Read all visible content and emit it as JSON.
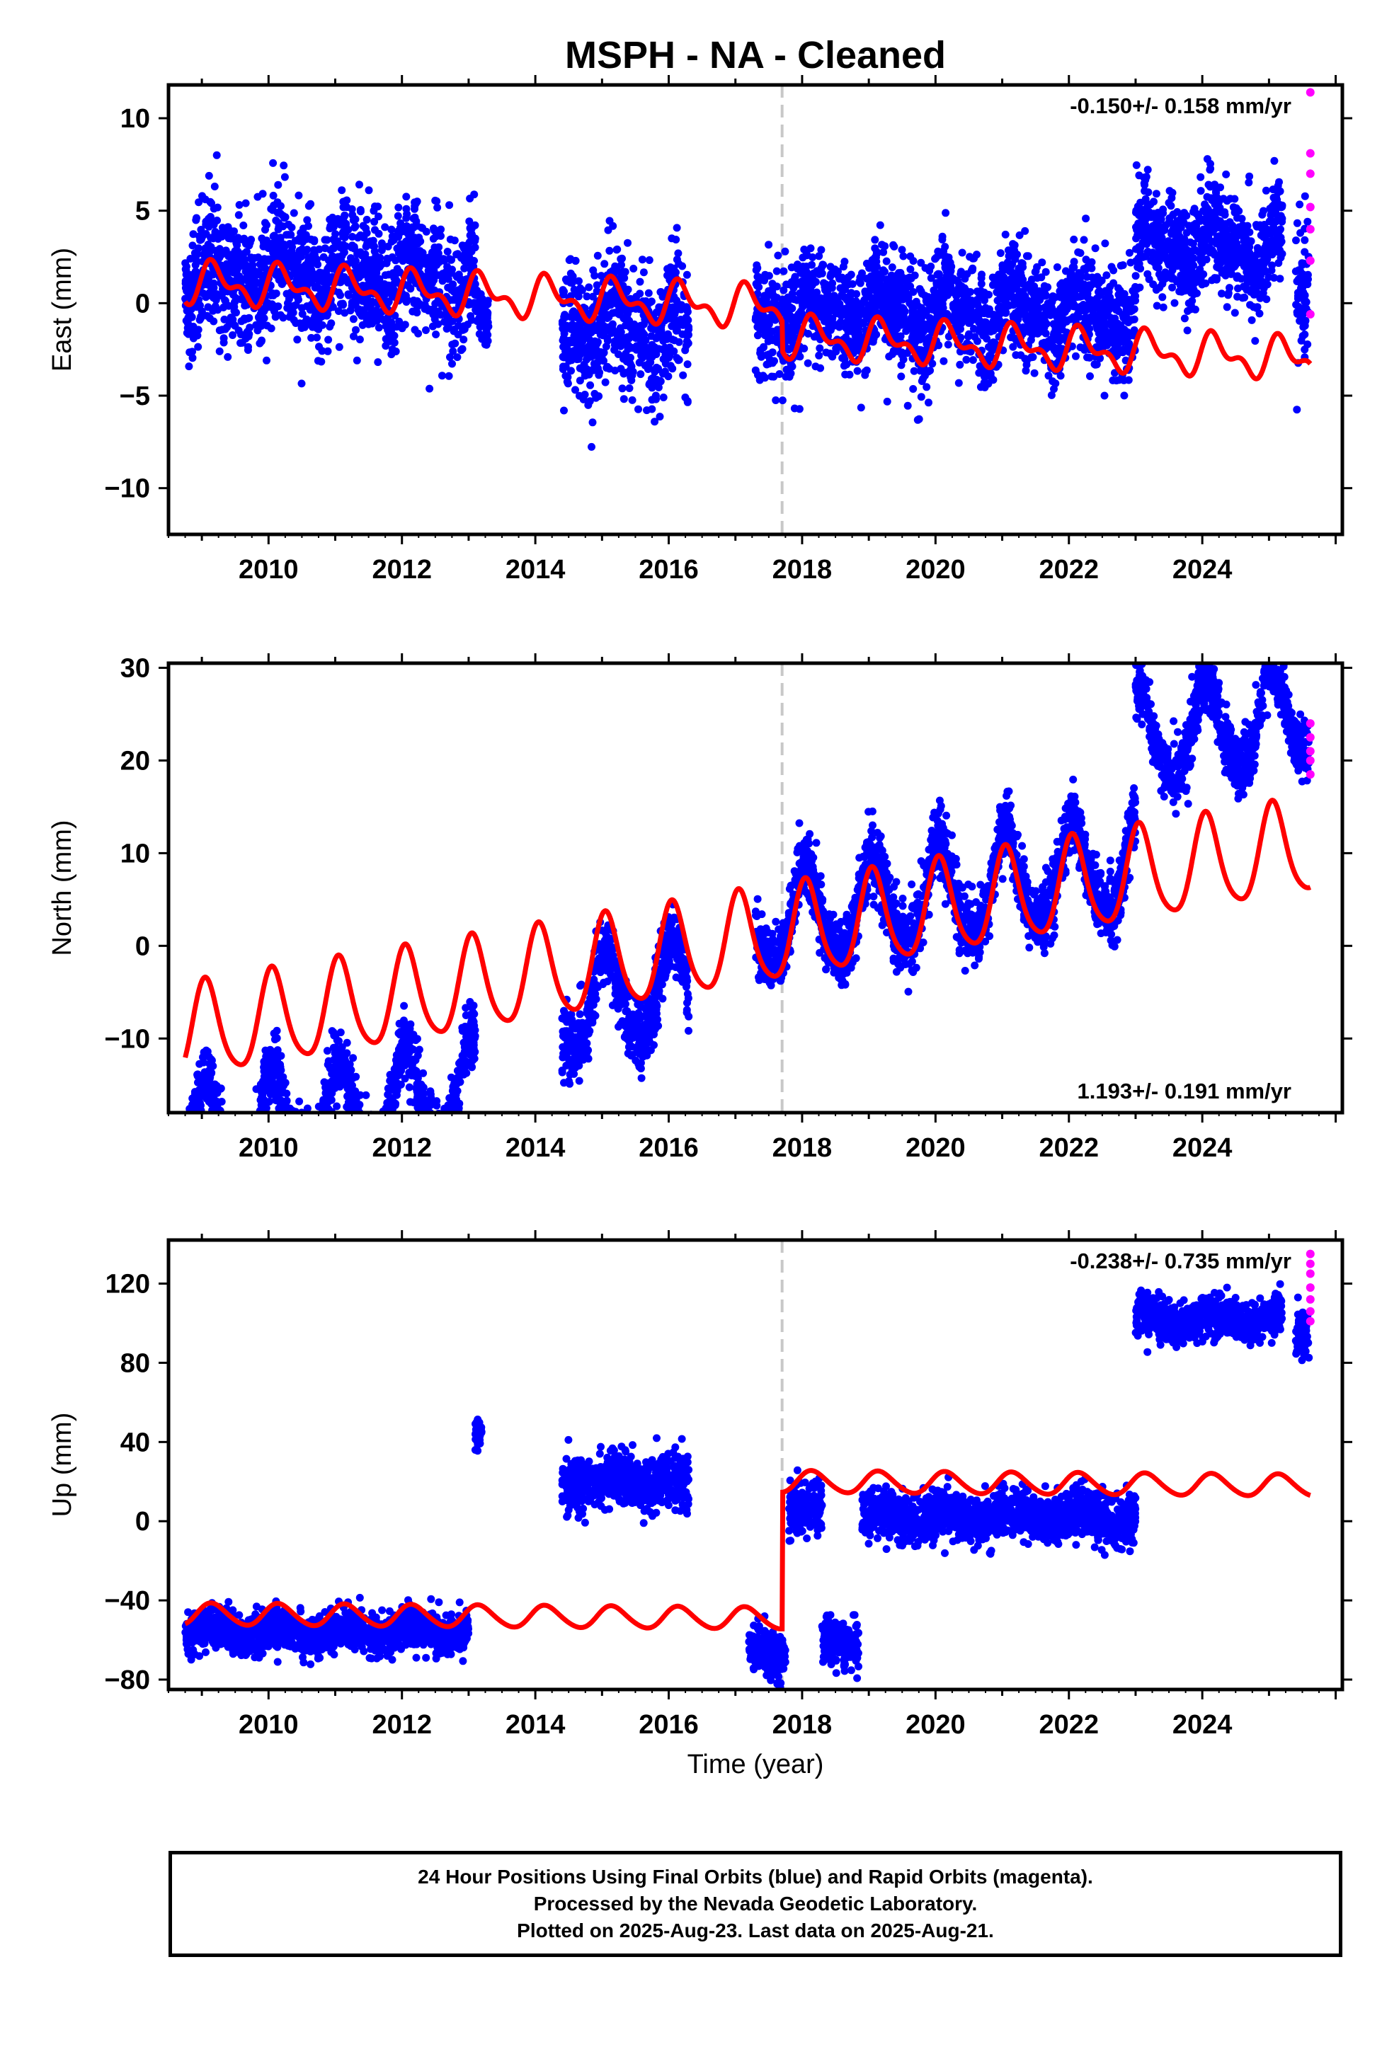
{
  "title": "MSPH  - NA - Cleaned",
  "colors": {
    "final": "#0000ff",
    "rapid": "#ff00ff",
    "model": "#ff0000",
    "event_line": "#c8c8c8"
  },
  "event_year": 2017.7,
  "xlabel": "Time (year)",
  "footer": {
    "line1": "24 Hour Positions Using Final Orbits (blue) and Rapid Orbits (magenta).",
    "line2": "Processed by the Nevada Geodetic Laboratory.",
    "line3": "Plotted on 2025-Aug-23. Last data on 2025-Aug-21."
  },
  "chart_data": [
    {
      "type": "scatter",
      "component": "East",
      "ylabel": "East (mm)",
      "rate_label": "-0.150+/- 0.158 mm/yr",
      "xlim": [
        2008.5,
        2026.1
      ],
      "ylim": [
        -12.5,
        11.8
      ],
      "yticks": [
        -10,
        -5,
        0,
        5,
        10
      ],
      "xticks": [
        2010,
        2012,
        2014,
        2016,
        2018,
        2020,
        2022,
        2024
      ],
      "data_segments": [
        {
          "start": 2008.75,
          "end": 2013.1,
          "offset": 1.5,
          "noise": 1.7
        },
        {
          "start": 2013.1,
          "end": 2013.3,
          "offset": -1.5,
          "noise": 0.7
        },
        {
          "start": 2014.4,
          "end": 2016.3,
          "offset": -1.3,
          "noise": 1.8
        },
        {
          "start": 2017.3,
          "end": 2023.0,
          "offset": -0.5,
          "noise": 1.5
        },
        {
          "start": 2023.0,
          "end": 2025.2,
          "offset": 3.0,
          "noise": 1.4
        },
        {
          "start": 2025.4,
          "end": 2025.6,
          "offset": 1.0,
          "noise": 2.0
        }
      ],
      "rapid_points": [
        [
          2025.62,
          11.4
        ],
        [
          2025.62,
          8.1
        ],
        [
          2025.62,
          7.0
        ],
        [
          2025.62,
          5.2
        ],
        [
          2025.62,
          4.0
        ],
        [
          2025.62,
          2.3
        ],
        [
          2025.62,
          -0.6
        ]
      ],
      "model": {
        "start": 2008.75,
        "end": 2025.62,
        "offset_pre": 1.1,
        "offset_post": -0.5,
        "rate": -0.15,
        "amp_annual": 0.9,
        "amp_semi": 0.55,
        "phase": 0.3
      }
    },
    {
      "type": "scatter",
      "component": "North",
      "ylabel": "North (mm)",
      "rate_label": "1.193+/- 0.191 mm/yr",
      "xlim": [
        2008.5,
        2026.1
      ],
      "ylim": [
        -18,
        30.5
      ],
      "yticks": [
        -10,
        0,
        10,
        20,
        30
      ],
      "xticks": [
        2010,
        2012,
        2014,
        2016,
        2018,
        2020,
        2022,
        2024
      ],
      "data_segments": [
        {
          "start": 2008.75,
          "end": 2013.1,
          "offset": -9.5,
          "noise": 1.8
        },
        {
          "start": 2014.4,
          "end": 2016.3,
          "offset": -2.5,
          "noise": 1.8
        },
        {
          "start": 2017.3,
          "end": 2023.0,
          "offset": 3.0,
          "noise": 1.8
        },
        {
          "start": 2023.0,
          "end": 2025.6,
          "offset": 16.0,
          "noise": 1.6
        }
      ],
      "rapid_points": [
        [
          2025.62,
          24.0
        ],
        [
          2025.62,
          22.5
        ],
        [
          2025.62,
          21.0
        ],
        [
          2025.62,
          20.0
        ],
        [
          2025.62,
          18.5
        ]
      ],
      "model": {
        "start": 2008.75,
        "end": 2025.62,
        "offset_pre": -9.5,
        "offset_post": -9.5,
        "rate": 1.193,
        "amp_annual": 5.0,
        "amp_semi": 0.8,
        "phase": 1.2
      }
    },
    {
      "type": "scatter",
      "component": "Up",
      "ylabel": "Up (mm)",
      "rate_label": "-0.238+/- 0.735 mm/yr",
      "xlim": [
        2008.5,
        2026.1
      ],
      "ylim": [
        -85,
        142
      ],
      "yticks": [
        -80,
        -40,
        0,
        40,
        80,
        120
      ],
      "xticks": [
        2010,
        2012,
        2014,
        2016,
        2018,
        2020,
        2022,
        2024
      ],
      "data_segments": [
        {
          "start": 2008.75,
          "end": 2013.0,
          "offset": -56,
          "noise": 5
        },
        {
          "start": 2013.1,
          "end": 2013.2,
          "offset": 40,
          "noise": 4
        },
        {
          "start": 2014.4,
          "end": 2016.3,
          "offset": 20,
          "noise": 7
        },
        {
          "start": 2017.2,
          "end": 2017.75,
          "offset": -65,
          "noise": 6
        },
        {
          "start": 2017.8,
          "end": 2018.3,
          "offset": 5,
          "noise": 7
        },
        {
          "start": 2018.3,
          "end": 2018.85,
          "offset": -60,
          "noise": 6
        },
        {
          "start": 2018.9,
          "end": 2023.0,
          "offset": 2,
          "noise": 6
        },
        {
          "start": 2023.0,
          "end": 2025.2,
          "offset": 102,
          "noise": 5
        },
        {
          "start": 2025.4,
          "end": 2025.6,
          "offset": 95,
          "noise": 6
        }
      ],
      "rapid_points": [
        [
          2025.62,
          135
        ],
        [
          2025.62,
          130
        ],
        [
          2025.62,
          125
        ],
        [
          2025.62,
          118
        ],
        [
          2025.62,
          112
        ],
        [
          2025.62,
          106
        ],
        [
          2025.62,
          101
        ]
      ],
      "model": {
        "start": 2008.75,
        "end": 2025.62,
        "offset_pre": -47,
        "offset_post": 22,
        "rate": -0.238,
        "amp_annual": 5.5,
        "amp_semi": 0.5,
        "phase": 0.6
      }
    }
  ]
}
